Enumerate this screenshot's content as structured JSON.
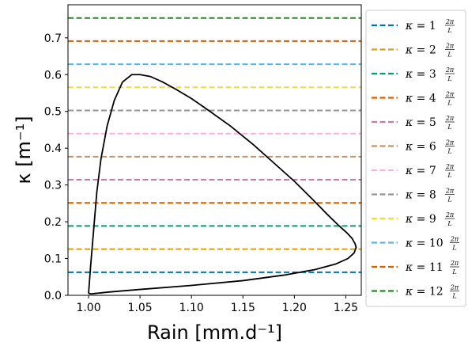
{
  "chart_data": {
    "type": "line",
    "title": "",
    "xlabel": "Rain [mm.d⁻¹]",
    "ylabel": "κ [m⁻¹]",
    "xlim": [
      0.98,
      1.265
    ],
    "ylim": [
      0.0,
      0.79
    ],
    "x_ticks": [
      "1.00",
      "1.05",
      "1.10",
      "1.15",
      "1.20",
      "1.25"
    ],
    "y_ticks": [
      "0.0",
      "0.1",
      "0.2",
      "0.3",
      "0.4",
      "0.5",
      "0.6",
      "0.7"
    ],
    "grid": false,
    "legend_position": "outside-right",
    "curve": {
      "color": "#000000",
      "x": [
        1.0,
        1.002,
        1.005,
        1.008,
        1.012,
        1.018,
        1.025,
        1.033,
        1.042,
        1.05,
        1.06,
        1.072,
        1.085,
        1.1,
        1.118,
        1.138,
        1.16,
        1.18,
        1.2,
        1.218,
        1.232,
        1.243,
        1.251,
        1.256,
        1.259,
        1.26,
        1.258,
        1.252,
        1.24,
        1.22,
        1.19,
        1.15,
        1.1,
        1.05,
        1.02,
        1.006,
        1.003,
        1.002,
        1.001,
        1.0
      ],
      "y": [
        0.005,
        0.08,
        0.18,
        0.28,
        0.37,
        0.46,
        0.53,
        0.58,
        0.6,
        0.6,
        0.595,
        0.58,
        0.56,
        0.535,
        0.5,
        0.46,
        0.41,
        0.36,
        0.31,
        0.26,
        0.22,
        0.19,
        0.17,
        0.155,
        0.14,
        0.13,
        0.115,
        0.1,
        0.085,
        0.07,
        0.055,
        0.04,
        0.027,
        0.016,
        0.009,
        0.005,
        0.004,
        0.004,
        0.005,
        0.005
      ]
    },
    "series": [
      {
        "label": "κ = 1 2π/L",
        "k": "1",
        "y": 0.0628,
        "color": "#0072b2"
      },
      {
        "label": "κ = 2 2π/L",
        "k": "2",
        "y": 0.1257,
        "color": "#e69f00"
      },
      {
        "label": "κ = 3 2π/L",
        "k": "3",
        "y": 0.1885,
        "color": "#009e73"
      },
      {
        "label": "κ = 4 2π/L",
        "k": "4",
        "y": 0.2513,
        "color": "#d55e00"
      },
      {
        "label": "κ = 5 2π/L",
        "k": "5",
        "y": 0.3142,
        "color": "#cc79a7"
      },
      {
        "label": "κ = 6 2π/L",
        "k": "6",
        "y": 0.377,
        "color": "#ca9161"
      },
      {
        "label": "κ = 7 2π/L",
        "k": "7",
        "y": 0.4398,
        "color": "#fbafe4"
      },
      {
        "label": "κ = 8 2π/L",
        "k": "8",
        "y": 0.5027,
        "color": "#949494"
      },
      {
        "label": "κ = 9 2π/L",
        "k": "9",
        "y": 0.5655,
        "color": "#ece133"
      },
      {
        "label": "κ = 10 2π/L",
        "k": "10",
        "y": 0.6283,
        "color": "#56b4e9"
      },
      {
        "label": "κ = 11 2π/L",
        "k": "11",
        "y": 0.6912,
        "color": "#d55e00"
      },
      {
        "label": "κ = 12 2π/L",
        "k": "12",
        "y": 0.754,
        "color": "#228b22"
      }
    ]
  }
}
